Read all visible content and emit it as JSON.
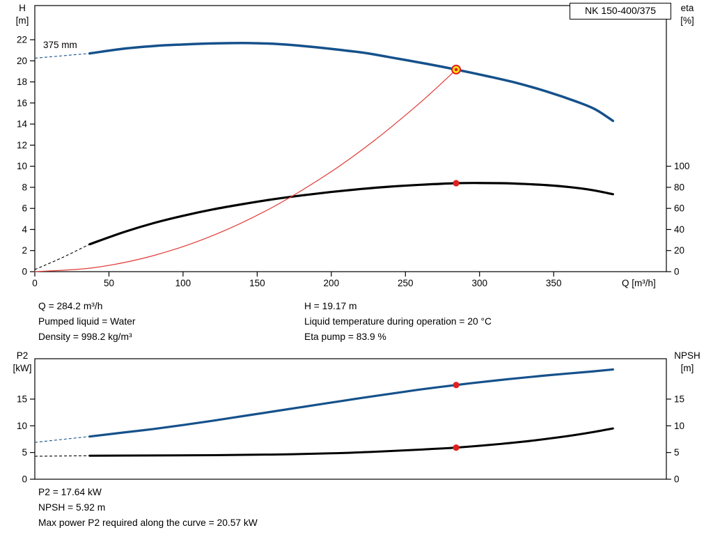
{
  "title_box": "NK 150-400/375",
  "info_top": {
    "col1": [
      "Q = 284.2 m³/h",
      "Pumped liquid = Water",
      "Density = 998.2 kg/m³"
    ],
    "col2": [
      "H = 19.17 m",
      "Liquid temperature during operation = 20 °C",
      "Eta pump = 83.9 %"
    ]
  },
  "info_bottom": [
    "P2 = 17.64 kW",
    "NPSH = 5.92 m",
    "Max power P2 required along the curve = 20.57 kW"
  ],
  "colors": {
    "curve_blue": "#15518b",
    "curve_black": "#000000",
    "duty_red": "#e03a35",
    "marker_fill": "#ffe014",
    "marker_stroke": "#dd1f1f",
    "dot_red": "#e02020",
    "axis": "#000000"
  },
  "chart_data": [
    {
      "type": "line",
      "name": "QH-eta-curve",
      "annotation": "375 mm",
      "x_axis": {
        "label": "Q [m³/h]",
        "min": 0,
        "max": 426,
        "ticks": [
          0,
          50,
          100,
          150,
          200,
          250,
          300,
          350
        ]
      },
      "y_left": {
        "name": "H",
        "unit": "[m]",
        "min": 0,
        "max": 25.24,
        "ticks": [
          0,
          2,
          4,
          6,
          8,
          10,
          12,
          14,
          16,
          18,
          20,
          22
        ]
      },
      "y_right": {
        "name": "eta",
        "unit": "[%]",
        "min": 0,
        "max": 252.4,
        "ticks": [
          0,
          20,
          40,
          60,
          80,
          100
        ]
      },
      "series": [
        {
          "name": "head-curve",
          "axis": "left",
          "color": "#15518b",
          "width": 3.5,
          "dashed": [
            [
              0,
              20.25
            ],
            [
              37,
              20.7
            ]
          ],
          "solid": [
            [
              37,
              20.7
            ],
            [
              60,
              21.15
            ],
            [
              80,
              21.4
            ],
            [
              100,
              21.55
            ],
            [
              125,
              21.66
            ],
            [
              145,
              21.68
            ],
            [
              165,
              21.58
            ],
            [
              185,
              21.35
            ],
            [
              205,
              21.05
            ],
            [
              225,
              20.7
            ],
            [
              245,
              20.2
            ],
            [
              265,
              19.7
            ],
            [
              284.2,
              19.17
            ],
            [
              305,
              18.55
            ],
            [
              325,
              17.9
            ],
            [
              345,
              17.1
            ],
            [
              365,
              16.15
            ],
            [
              378,
              15.4
            ],
            [
              390,
              14.3
            ]
          ]
        },
        {
          "name": "eta-curve",
          "axis": "right",
          "color": "#000000",
          "width": 3.2,
          "dashed": [
            [
              0,
              2
            ],
            [
              18,
              13
            ],
            [
              37,
              26
            ]
          ],
          "solid": [
            [
              37,
              26
            ],
            [
              60,
              37.5
            ],
            [
              80,
              46
            ],
            [
              100,
              53
            ],
            [
              120,
              59
            ],
            [
              140,
              64
            ],
            [
              160,
              68.5
            ],
            [
              180,
              72.3
            ],
            [
              200,
              75.6
            ],
            [
              220,
              78.4
            ],
            [
              240,
              80.7
            ],
            [
              260,
              82.4
            ],
            [
              284.2,
              83.9
            ],
            [
              300,
              84.1
            ],
            [
              315,
              83.9
            ],
            [
              330,
              83.2
            ],
            [
              345,
              82.1
            ],
            [
              360,
              80.3
            ],
            [
              375,
              77.6
            ],
            [
              390,
              73.5
            ]
          ]
        },
        {
          "name": "duty-parabola",
          "axis": "left",
          "color": "#e03a35",
          "width": 1.2,
          "solid": [
            [
              0,
              0
            ],
            [
              40,
              0.38
            ],
            [
              80,
              1.52
            ],
            [
              120,
              3.42
            ],
            [
              160,
              6.08
            ],
            [
              200,
              9.49
            ],
            [
              230,
              12.55
            ],
            [
              255,
              15.43
            ],
            [
              270,
              17.3
            ],
            [
              284.2,
              19.17
            ]
          ]
        }
      ],
      "markers": [
        {
          "name": "duty-point",
          "axis": "left",
          "x": 284.2,
          "y": 19.17,
          "style": "ring"
        },
        {
          "name": "eta-point",
          "axis": "right",
          "x": 284.2,
          "y": 83.9,
          "style": "dot"
        }
      ]
    },
    {
      "type": "line",
      "name": "P2-NPSH-curve",
      "annotation": "",
      "x_axis": {
        "label": "",
        "min": 0,
        "max": 426,
        "ticks": []
      },
      "y_left": {
        "name": "P2",
        "unit": "[kW]",
        "min": 0,
        "max": 22.56,
        "ticks": [
          0,
          5,
          10,
          15
        ]
      },
      "y_right": {
        "name": "NPSH",
        "unit": "[m]",
        "min": 0,
        "max": 22.56,
        "ticks": [
          0,
          5,
          10,
          15
        ]
      },
      "series": [
        {
          "name": "p2-curve",
          "axis": "left",
          "color": "#15518b",
          "width": 3.2,
          "dashed": [
            [
              0,
              6.9
            ],
            [
              37,
              8.0
            ]
          ],
          "solid": [
            [
              37,
              8.0
            ],
            [
              60,
              8.75
            ],
            [
              80,
              9.4
            ],
            [
              100,
              10.15
            ],
            [
              120,
              10.95
            ],
            [
              140,
              11.8
            ],
            [
              160,
              12.65
            ],
            [
              180,
              13.5
            ],
            [
              200,
              14.35
            ],
            [
              220,
              15.2
            ],
            [
              240,
              16.0
            ],
            [
              260,
              16.8
            ],
            [
              284.2,
              17.64
            ],
            [
              300,
              18.15
            ],
            [
              320,
              18.75
            ],
            [
              340,
              19.3
            ],
            [
              360,
              19.8
            ],
            [
              375,
              20.15
            ],
            [
              390,
              20.55
            ]
          ]
        },
        {
          "name": "npsh-curve",
          "axis": "right",
          "color": "#000000",
          "width": 3.0,
          "dashed": [
            [
              0,
              4.3
            ],
            [
              37,
              4.4
            ]
          ],
          "solid": [
            [
              37,
              4.4
            ],
            [
              80,
              4.45
            ],
            [
              120,
              4.5
            ],
            [
              160,
              4.62
            ],
            [
              200,
              4.85
            ],
            [
              230,
              5.15
            ],
            [
              260,
              5.55
            ],
            [
              284.2,
              5.92
            ],
            [
              310,
              6.5
            ],
            [
              335,
              7.2
            ],
            [
              360,
              8.1
            ],
            [
              375,
              8.75
            ],
            [
              390,
              9.5
            ]
          ]
        }
      ],
      "markers": [
        {
          "name": "p2-point",
          "axis": "left",
          "x": 284.2,
          "y": 17.64,
          "style": "dot"
        },
        {
          "name": "npsh-point",
          "axis": "right",
          "x": 284.2,
          "y": 5.92,
          "style": "dot"
        }
      ]
    }
  ]
}
